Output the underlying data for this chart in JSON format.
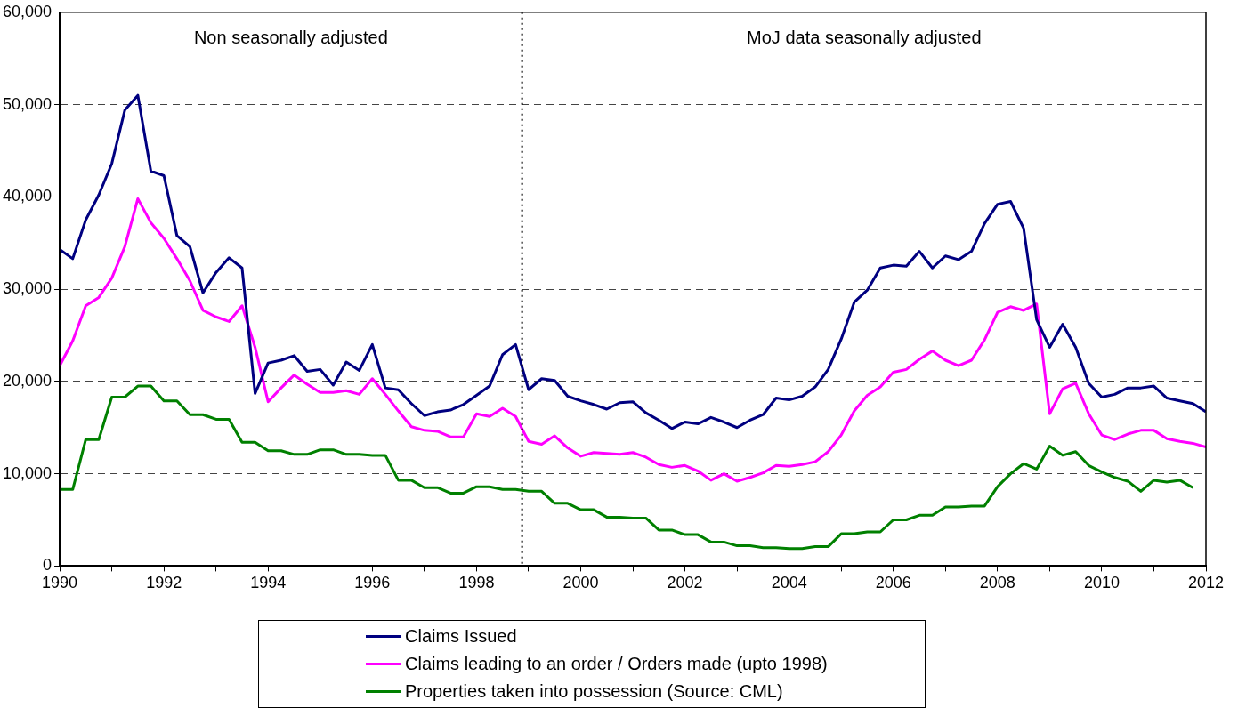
{
  "chart_data": {
    "type": "line",
    "x": [
      1990,
      1990.25,
      1990.5,
      1990.75,
      1991,
      1991.25,
      1991.5,
      1991.75,
      1992,
      1992.25,
      1992.5,
      1992.75,
      1993,
      1993.25,
      1993.5,
      1993.75,
      1994,
      1994.25,
      1994.5,
      1994.75,
      1995,
      1995.25,
      1995.5,
      1995.75,
      1996,
      1996.25,
      1996.5,
      1996.75,
      1997,
      1997.25,
      1997.5,
      1997.75,
      1998,
      1998.25,
      1998.5,
      1998.75,
      1999,
      1999.25,
      1999.5,
      1999.75,
      2000,
      2000.25,
      2000.5,
      2000.75,
      2001,
      2001.25,
      2001.5,
      2001.75,
      2002,
      2002.25,
      2002.5,
      2002.75,
      2003,
      2003.25,
      2003.5,
      2003.75,
      2004,
      2004.25,
      2004.5,
      2004.75,
      2005,
      2005.25,
      2005.5,
      2005.75,
      2006,
      2006.25,
      2006.5,
      2006.75,
      2007,
      2007.25,
      2007.5,
      2007.75,
      2008,
      2008.25,
      2008.5,
      2008.75,
      2009,
      2009.25,
      2009.5,
      2009.75,
      2010,
      2010.25,
      2010.5,
      2010.75,
      2011,
      2011.25,
      2011.5,
      2011.75,
      2012
    ],
    "series": [
      {
        "name": "Claims Issued",
        "color": "#000080",
        "values": [
          34300,
          33300,
          37500,
          40200,
          43600,
          49400,
          51000,
          42800,
          42300,
          35800,
          34600,
          29600,
          31800,
          33400,
          32300,
          18700,
          22000,
          22300,
          22800,
          21100,
          21300,
          19600,
          22100,
          21200,
          24000,
          19300,
          19100,
          17600,
          16300,
          16700,
          16900,
          17500,
          18500,
          19500,
          22900,
          24000,
          19100,
          20300,
          20100,
          18400,
          17900,
          17500,
          17000,
          17700,
          17800,
          16600,
          15800,
          14900,
          15600,
          15400,
          16100,
          15600,
          15000,
          15800,
          16400,
          18200,
          18000,
          18400,
          19400,
          21300,
          24600,
          28600,
          29900,
          32300,
          32600,
          32500,
          34100,
          32300,
          33600,
          33200,
          34100,
          37100,
          39200,
          39500,
          36600,
          26700,
          23700,
          26200,
          23700,
          19800,
          18300,
          18600,
          19300,
          19300,
          19500,
          18200,
          17900,
          17600,
          16700
        ]
      },
      {
        "name": "Claims leading to an order / Orders made (upto 1998)",
        "color": "#ff00ff",
        "values": [
          21700,
          24400,
          28200,
          29100,
          31200,
          34600,
          39800,
          37200,
          35500,
          33300,
          30900,
          27700,
          27000,
          26500,
          28200,
          23700,
          17800,
          19300,
          20700,
          19700,
          18800,
          18800,
          19000,
          18600,
          20300,
          18600,
          16800,
          15100,
          14700,
          14600,
          14000,
          14000,
          16500,
          16200,
          17100,
          16200,
          13500,
          13200,
          14100,
          12800,
          11900,
          12300,
          12200,
          12100,
          12300,
          11800,
          11000,
          10700,
          10900,
          10300,
          9300,
          10000,
          9200,
          9600,
          10100,
          10900,
          10800,
          11000,
          11300,
          12400,
          14200,
          16800,
          18500,
          19400,
          21000,
          21300,
          22400,
          23300,
          22300,
          21700,
          22300,
          24500,
          27500,
          28100,
          27700,
          28400,
          16500,
          19200,
          19800,
          16500,
          14200,
          13700,
          14300,
          14700,
          14700,
          13800,
          13500,
          13300,
          12900
        ]
      },
      {
        "name": "Properties taken into possession (Source: CML)",
        "color": "#008000",
        "values": [
          8300,
          8300,
          13700,
          13700,
          18300,
          18300,
          19500,
          19500,
          17900,
          17900,
          16400,
          16400,
          15900,
          15900,
          13400,
          13400,
          12500,
          12500,
          12100,
          12100,
          12600,
          12600,
          12100,
          12100,
          12000,
          12000,
          9300,
          9300,
          8500,
          8500,
          7900,
          7900,
          8600,
          8600,
          8300,
          8300,
          8100,
          8100,
          6800,
          6800,
          6100,
          6100,
          5300,
          5300,
          5200,
          5200,
          3900,
          3900,
          3400,
          3400,
          2600,
          2600,
          2200,
          2200,
          2000,
          2000,
          1900,
          1900,
          2100,
          2100,
          3500,
          3500,
          3700,
          3700,
          5000,
          5000,
          5500,
          5500,
          6400,
          6400,
          6500,
          6500,
          8600,
          10000,
          11100,
          10500,
          13000,
          12000,
          12400,
          10900,
          10200,
          9600,
          9200,
          8100,
          9300,
          9100,
          9300,
          8500,
          null
        ]
      }
    ],
    "xlim": [
      1990,
      2012
    ],
    "xticks": [
      1990,
      {
        "value": 1991,
        "label": null
      },
      1992,
      {
        "value": 1993,
        "label": null
      },
      1994,
      {
        "value": 1995,
        "label": null
      },
      1996,
      {
        "value": 1997,
        "label": null
      },
      1998,
      {
        "value": 1999,
        "label": null
      },
      2000,
      {
        "value": 2001,
        "label": null
      },
      2002,
      {
        "value": 2003,
        "label": null
      },
      2004,
      {
        "value": 2005,
        "label": null
      },
      2006,
      {
        "value": 2007,
        "label": null
      },
      2008,
      {
        "value": 2009,
        "label": null
      },
      2010,
      {
        "value": 2011,
        "label": null
      },
      2012
    ],
    "ylim": [
      0,
      60000
    ],
    "yticks": [
      0,
      {
        "value": 10000,
        "label": "10,000"
      },
      {
        "value": 20000,
        "label": "20,000"
      },
      {
        "value": 30000,
        "label": "30,000"
      },
      {
        "value": 40000,
        "label": "40,000"
      },
      {
        "value": 50000,
        "label": "50,000"
      },
      {
        "value": 60000,
        "label": "60,000"
      }
    ],
    "ref_lines": [
      {
        "axis": "x",
        "value": 1998.875,
        "color": "#000000",
        "line_style": "dotted"
      }
    ],
    "annotations": [
      "Non seasonally adjusted",
      "MoJ data seasonally adjusted"
    ],
    "grid": "y",
    "legend": "bottom",
    "marker": "none",
    "line_style": "solid"
  }
}
